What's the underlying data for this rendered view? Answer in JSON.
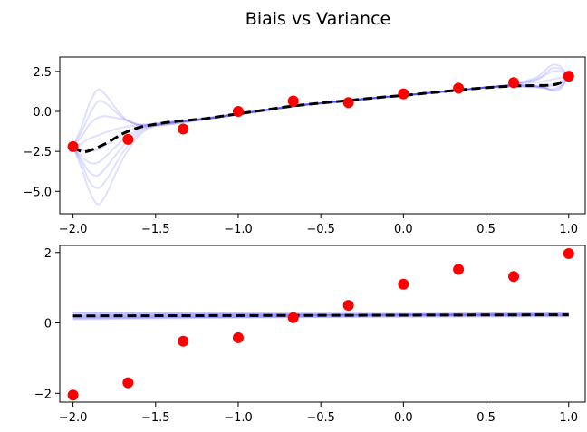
{
  "title": "Biais vs Variance",
  "chart_data": [
    {
      "type": "line",
      "description_title": "",
      "xlim": [
        -2.08,
        1.1
      ],
      "ylim": [
        -6.4,
        3.4
      ],
      "xticks": [
        -2.0,
        -1.5,
        -1.0,
        -0.5,
        0.0,
        0.5,
        1.0
      ],
      "xtick_labels": [
        "−2.0",
        "−1.5",
        "−1.0",
        "−0.5",
        "0.0",
        "0.5",
        "1.0"
      ],
      "yticks": [
        2.5,
        0.0,
        -2.5,
        -5.0
      ],
      "ytick_labels": [
        "2.5",
        "0.0",
        "−2.5",
        "−5.0"
      ],
      "points": {
        "color": "#ff0000",
        "x": [
          -2.0,
          -1.667,
          -1.333,
          -1.0,
          -0.667,
          -0.333,
          0.0,
          0.333,
          0.667,
          1.0
        ],
        "y": [
          -2.2,
          -1.75,
          -1.1,
          0.0,
          0.65,
          0.55,
          1.1,
          1.45,
          1.8,
          2.2
        ]
      },
      "mean_fit": {
        "color": "#000000",
        "style": "dashed",
        "x": [
          -2.0,
          -1.95,
          -1.9,
          -1.8,
          -1.7,
          -1.6,
          -1.5,
          -1.4,
          -1.3,
          -1.2,
          -1.1,
          -1.0,
          -0.9,
          -0.8,
          -0.7,
          -0.6,
          -0.5,
          -0.4,
          -0.3,
          -0.2,
          -0.1,
          0.0,
          0.1,
          0.2,
          0.3,
          0.4,
          0.5,
          0.6,
          0.7,
          0.8,
          0.9,
          0.95,
          1.0
        ],
        "y": [
          -2.2,
          -2.5,
          -2.45,
          -2.0,
          -1.4,
          -1.0,
          -0.8,
          -0.65,
          -0.55,
          -0.45,
          -0.3,
          -0.15,
          0.0,
          0.15,
          0.3,
          0.42,
          0.52,
          0.62,
          0.72,
          0.82,
          0.92,
          1.0,
          1.1,
          1.2,
          1.3,
          1.4,
          1.48,
          1.55,
          1.6,
          1.62,
          1.65,
          1.8,
          2.2
        ]
      },
      "sample_fits": {
        "color": "#0000ff",
        "opacity": 0.12,
        "x": [
          -2.0,
          -1.95,
          -1.9,
          -1.85,
          -1.8,
          -1.7,
          -1.6,
          -1.5,
          -1.4,
          -1.3,
          -1.2,
          -1.1,
          -1.0,
          -0.9,
          -0.8,
          -0.7,
          -0.6,
          -0.5,
          -0.4,
          -0.3,
          -0.2,
          -0.1,
          0.0,
          0.1,
          0.2,
          0.3,
          0.4,
          0.5,
          0.6,
          0.7,
          0.8,
          0.85,
          0.9,
          0.95,
          1.0
        ],
        "curves": [
          [
            -2.2,
            -3.5,
            -5.0,
            -5.8,
            -5.2,
            -3.0,
            -1.5,
            -0.9,
            -0.7,
            -0.6,
            -0.5,
            -0.35,
            -0.2,
            -0.05,
            0.1,
            0.25,
            0.4,
            0.5,
            0.6,
            0.7,
            0.8,
            0.9,
            1.0,
            1.1,
            1.2,
            1.3,
            1.4,
            1.5,
            1.6,
            1.65,
            1.6,
            1.5,
            1.3,
            1.4,
            2.2
          ],
          [
            -2.2,
            -1.0,
            0.5,
            1.35,
            1.0,
            -0.3,
            -0.9,
            -0.9,
            -0.8,
            -0.65,
            -0.5,
            -0.35,
            -0.2,
            -0.05,
            0.1,
            0.25,
            0.4,
            0.5,
            0.6,
            0.7,
            0.8,
            0.9,
            1.0,
            1.1,
            1.2,
            1.3,
            1.4,
            1.5,
            1.6,
            1.8,
            2.1,
            2.5,
            2.9,
            2.8,
            2.2
          ],
          [
            -2.2,
            -3.0,
            -3.8,
            -4.0,
            -3.5,
            -2.2,
            -1.2,
            -0.85,
            -0.7,
            -0.6,
            -0.45,
            -0.3,
            -0.15,
            0.0,
            0.15,
            0.3,
            0.42,
            0.52,
            0.62,
            0.72,
            0.82,
            0.92,
            1.0,
            1.1,
            1.2,
            1.3,
            1.4,
            1.5,
            1.55,
            1.6,
            1.55,
            1.45,
            1.4,
            1.6,
            2.2
          ],
          [
            -2.2,
            -1.6,
            -0.8,
            -0.4,
            -0.3,
            -0.5,
            -0.8,
            -0.85,
            -0.75,
            -0.6,
            -0.45,
            -0.3,
            -0.15,
            0.0,
            0.15,
            0.3,
            0.42,
            0.52,
            0.62,
            0.72,
            0.82,
            0.92,
            1.0,
            1.1,
            1.2,
            1.3,
            1.4,
            1.5,
            1.6,
            1.75,
            1.95,
            2.2,
            2.5,
            2.5,
            2.2
          ],
          [
            -2.2,
            -2.8,
            -3.2,
            -3.2,
            -2.8,
            -1.8,
            -1.1,
            -0.8,
            -0.65,
            -0.55,
            -0.45,
            -0.3,
            -0.15,
            0.0,
            0.15,
            0.3,
            0.42,
            0.52,
            0.62,
            0.72,
            0.82,
            0.92,
            1.0,
            1.1,
            1.2,
            1.3,
            1.4,
            1.5,
            1.55,
            1.55,
            1.5,
            1.5,
            1.6,
            1.8,
            2.2
          ],
          [
            -2.2,
            -2.0,
            -1.7,
            -1.5,
            -1.3,
            -1.0,
            -0.85,
            -0.75,
            -0.65,
            -0.55,
            -0.42,
            -0.28,
            -0.14,
            0.0,
            0.14,
            0.28,
            0.42,
            0.52,
            0.62,
            0.72,
            0.82,
            0.92,
            1.0,
            1.1,
            1.2,
            1.3,
            1.4,
            1.48,
            1.58,
            1.7,
            1.8,
            1.9,
            2.0,
            2.1,
            2.2
          ],
          [
            -2.2,
            -3.2,
            -4.4,
            -4.8,
            -4.3,
            -2.6,
            -1.35,
            -0.85,
            -0.68,
            -0.58,
            -0.46,
            -0.32,
            -0.17,
            -0.02,
            0.13,
            0.28,
            0.41,
            0.51,
            0.61,
            0.71,
            0.81,
            0.91,
            1.0,
            1.1,
            1.2,
            1.3,
            1.4,
            1.5,
            1.57,
            1.62,
            1.58,
            1.5,
            1.35,
            1.5,
            2.2
          ],
          [
            -2.2,
            -1.3,
            -0.2,
            0.6,
            0.5,
            -0.4,
            -0.85,
            -0.88,
            -0.78,
            -0.63,
            -0.48,
            -0.33,
            -0.18,
            -0.03,
            0.12,
            0.27,
            0.41,
            0.51,
            0.61,
            0.71,
            0.81,
            0.91,
            1.0,
            1.1,
            1.2,
            1.3,
            1.4,
            1.5,
            1.6,
            1.78,
            2.0,
            2.3,
            2.7,
            2.65,
            2.2
          ],
          [
            -2.2,
            -2.4,
            -2.5,
            -2.4,
            -2.1,
            -1.4,
            -0.95,
            -0.78,
            -0.66,
            -0.55,
            -0.44,
            -0.3,
            -0.16,
            -0.01,
            0.14,
            0.29,
            0.42,
            0.52,
            0.62,
            0.72,
            0.82,
            0.92,
            1.0,
            1.1,
            1.2,
            1.3,
            1.4,
            1.5,
            1.55,
            1.58,
            1.55,
            1.58,
            1.7,
            1.9,
            2.2
          ]
        ]
      }
    },
    {
      "type": "line",
      "xlim": [
        -2.08,
        1.1
      ],
      "ylim": [
        -2.25,
        2.2
      ],
      "xticks": [
        -2.0,
        -1.5,
        -1.0,
        -0.5,
        0.0,
        0.5,
        1.0
      ],
      "xtick_labels": [
        "−2.0",
        "−1.5",
        "−1.0",
        "−0.5",
        "0.0",
        "0.5",
        "1.0"
      ],
      "yticks": [
        2,
        0,
        -2
      ],
      "ytick_labels": [
        "2",
        "0",
        "−2"
      ],
      "points": {
        "color": "#ff0000",
        "x": [
          -2.0,
          -1.667,
          -1.333,
          -1.0,
          -0.667,
          -0.333,
          0.0,
          0.333,
          0.667,
          1.0
        ],
        "y": [
          -2.05,
          -1.7,
          -0.52,
          -0.42,
          0.15,
          0.5,
          1.1,
          1.52,
          1.32,
          1.97
        ]
      },
      "mean_fit": {
        "color": "#000000",
        "style": "dashed",
        "x": [
          -2.0,
          1.0
        ],
        "y": [
          0.2,
          0.23
        ]
      },
      "sample_fits": {
        "color": "#0000ff",
        "opacity": 0.12,
        "x": [
          -2.0,
          1.0
        ],
        "curves": [
          [
            0.15,
            0.18
          ],
          [
            0.25,
            0.28
          ],
          [
            0.2,
            0.24
          ],
          [
            0.12,
            0.3
          ],
          [
            0.28,
            0.2
          ],
          [
            0.18,
            0.26
          ],
          [
            0.22,
            0.22
          ],
          [
            0.1,
            0.25
          ],
          [
            0.3,
            0.22
          ],
          [
            0.16,
            0.2
          ]
        ]
      }
    }
  ]
}
